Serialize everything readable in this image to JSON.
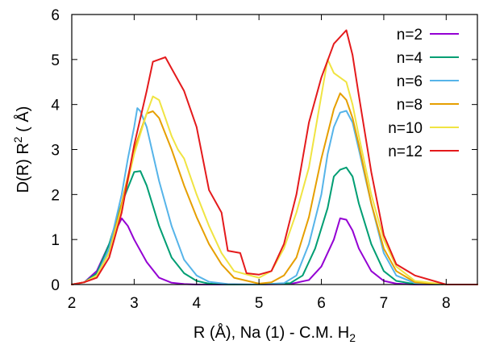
{
  "chart_data": {
    "type": "line",
    "title": "",
    "xlabel": {
      "main": "R (Å), Na (1) - C.M. H",
      "sub": "2"
    },
    "ylabel": {
      "main": "D(R) R",
      "sup": "2",
      "tail": " ( Å)"
    },
    "xlim": [
      2,
      8.5
    ],
    "ylim": [
      0,
      6
    ],
    "xticks": [
      2,
      3,
      4,
      5,
      6,
      7,
      8
    ],
    "yticks": [
      0,
      1,
      2,
      3,
      4,
      5,
      6
    ],
    "grid": false,
    "legend_position": "top-right",
    "series": [
      {
        "name": "n=2",
        "color": "#9400d3",
        "x": [
          2.0,
          2.2,
          2.4,
          2.6,
          2.8,
          2.9,
          3.0,
          3.2,
          3.4,
          3.6,
          3.8,
          4.0,
          4.5,
          5.0,
          5.5,
          5.8,
          6.0,
          6.2,
          6.3,
          6.4,
          6.5,
          6.6,
          6.8,
          7.0,
          7.2,
          7.5,
          8.0,
          8.5
        ],
        "y": [
          0.0,
          0.05,
          0.3,
          0.9,
          1.47,
          1.3,
          1.0,
          0.5,
          0.15,
          0.04,
          0.01,
          0.0,
          0.0,
          0.0,
          0.01,
          0.1,
          0.4,
          1.0,
          1.47,
          1.44,
          1.2,
          0.8,
          0.3,
          0.08,
          0.02,
          0.0,
          0.0,
          0.0
        ]
      },
      {
        "name": "n=4",
        "color": "#009e73",
        "x": [
          2.0,
          2.2,
          2.4,
          2.6,
          2.8,
          3.0,
          3.1,
          3.2,
          3.4,
          3.6,
          3.8,
          4.0,
          4.2,
          4.5,
          5.0,
          5.5,
          5.7,
          5.9,
          6.1,
          6.2,
          6.3,
          6.4,
          6.5,
          6.6,
          6.8,
          7.0,
          7.2,
          7.5,
          8.0,
          8.5
        ],
        "y": [
          0.0,
          0.05,
          0.25,
          0.9,
          1.8,
          2.5,
          2.52,
          2.2,
          1.3,
          0.6,
          0.25,
          0.08,
          0.02,
          0.0,
          0.0,
          0.03,
          0.2,
          0.8,
          1.7,
          2.4,
          2.55,
          2.6,
          2.4,
          1.8,
          0.9,
          0.3,
          0.08,
          0.01,
          0.0,
          0.0
        ]
      },
      {
        "name": "n=6",
        "color": "#56b4e9",
        "x": [
          2.0,
          2.2,
          2.4,
          2.6,
          2.8,
          2.9,
          3.0,
          3.05,
          3.1,
          3.2,
          3.3,
          3.4,
          3.6,
          3.8,
          4.0,
          4.2,
          4.5,
          5.0,
          5.4,
          5.6,
          5.8,
          6.0,
          6.1,
          6.2,
          6.3,
          6.4,
          6.5,
          6.6,
          6.8,
          7.0,
          7.2,
          7.5,
          8.0,
          8.5
        ],
        "y": [
          0.0,
          0.05,
          0.2,
          0.8,
          2.0,
          2.8,
          3.5,
          3.92,
          3.85,
          3.5,
          2.9,
          2.3,
          1.3,
          0.55,
          0.2,
          0.06,
          0.01,
          0.0,
          0.03,
          0.2,
          0.9,
          2.0,
          2.9,
          3.5,
          3.82,
          3.86,
          3.6,
          3.0,
          1.8,
          0.7,
          0.2,
          0.03,
          0.0,
          0.0
        ]
      },
      {
        "name": "n=8",
        "color": "#e69f00",
        "x": [
          2.0,
          2.2,
          2.4,
          2.6,
          2.8,
          3.0,
          3.2,
          3.3,
          3.4,
          3.6,
          3.8,
          4.0,
          4.2,
          4.4,
          4.6,
          5.0,
          5.2,
          5.4,
          5.6,
          5.8,
          6.0,
          6.2,
          6.3,
          6.4,
          6.5,
          6.6,
          6.8,
          7.0,
          7.2,
          7.5,
          8.0,
          8.5
        ],
        "y": [
          0.0,
          0.05,
          0.2,
          0.7,
          1.8,
          3.0,
          3.8,
          3.85,
          3.7,
          3.0,
          2.2,
          1.5,
          0.9,
          0.45,
          0.15,
          0.02,
          0.05,
          0.2,
          0.6,
          1.5,
          2.8,
          3.9,
          4.25,
          4.1,
          3.7,
          3.1,
          1.8,
          0.8,
          0.3,
          0.05,
          0.0,
          0.0
        ]
      },
      {
        "name": "n=10",
        "color": "#f0e442",
        "x": [
          2.0,
          2.2,
          2.4,
          2.6,
          2.8,
          3.0,
          3.2,
          3.3,
          3.4,
          3.5,
          3.6,
          3.7,
          3.8,
          4.0,
          4.2,
          4.4,
          4.6,
          5.0,
          5.2,
          5.4,
          5.6,
          5.8,
          6.0,
          6.1,
          6.2,
          6.4,
          6.5,
          6.6,
          6.8,
          7.0,
          7.2,
          7.5,
          8.0,
          8.5
        ],
        "y": [
          0.0,
          0.05,
          0.2,
          0.7,
          1.7,
          2.9,
          3.8,
          4.18,
          4.1,
          3.7,
          3.3,
          3.0,
          2.8,
          2.0,
          1.3,
          0.7,
          0.3,
          0.15,
          0.3,
          0.8,
          1.6,
          2.6,
          4.2,
          5.0,
          4.7,
          4.5,
          4.0,
          3.3,
          2.0,
          1.0,
          0.4,
          0.08,
          0.0,
          0.0
        ]
      },
      {
        "name": "n=12",
        "color": "#e41a1c",
        "x": [
          2.0,
          2.2,
          2.4,
          2.6,
          2.8,
          3.0,
          3.2,
          3.3,
          3.4,
          3.5,
          3.6,
          3.8,
          4.0,
          4.2,
          4.4,
          4.5,
          4.7,
          4.8,
          5.0,
          5.2,
          5.4,
          5.6,
          5.8,
          6.0,
          6.2,
          6.4,
          6.5,
          6.6,
          6.8,
          7.0,
          7.2,
          7.5,
          8.0,
          8.5
        ],
        "y": [
          0.0,
          0.05,
          0.15,
          0.6,
          1.6,
          3.1,
          4.3,
          4.95,
          5.0,
          5.05,
          4.8,
          4.3,
          3.5,
          2.1,
          1.6,
          0.75,
          0.7,
          0.25,
          0.22,
          0.3,
          0.9,
          2.0,
          3.6,
          4.6,
          5.35,
          5.65,
          5.1,
          4.2,
          2.5,
          1.1,
          0.45,
          0.2,
          0.0,
          0.0
        ]
      }
    ]
  }
}
